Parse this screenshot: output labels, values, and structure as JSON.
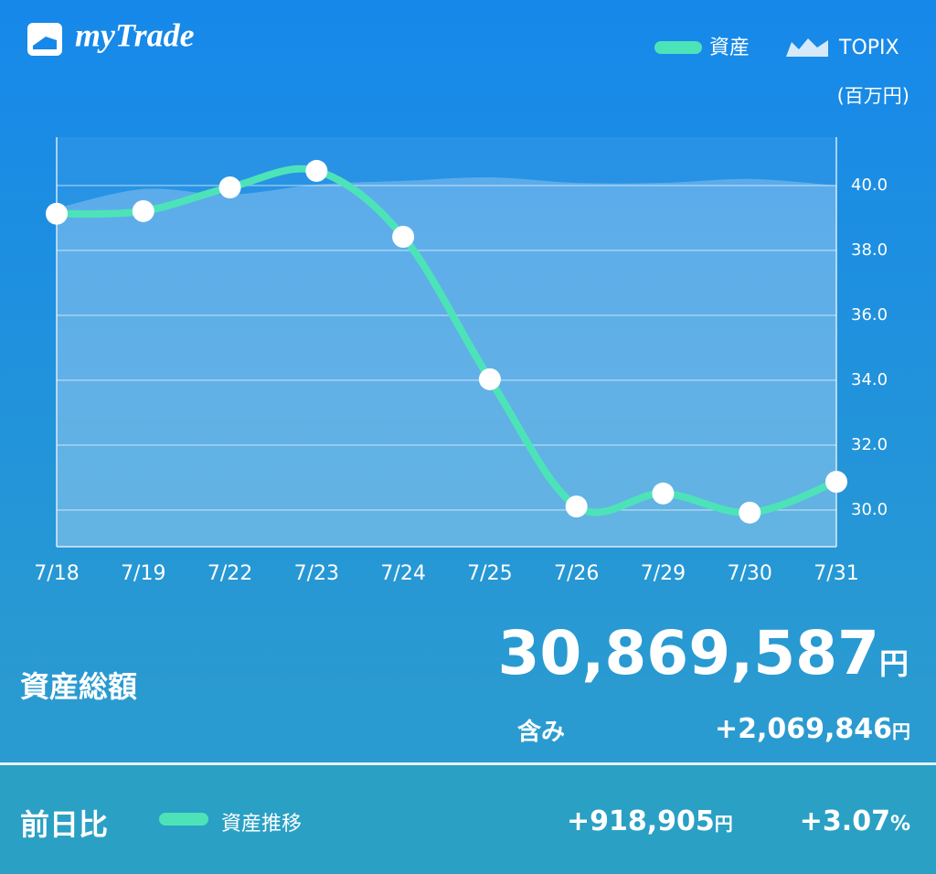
{
  "app_title": "myTrade",
  "chart_data": {
    "type": "line",
    "unit_label": "(百万円)",
    "categories": [
      "7/18",
      "7/19",
      "7/22",
      "7/23",
      "7/24",
      "7/25",
      "7/26",
      "7/29",
      "7/30",
      "7/31"
    ],
    "series": [
      {
        "name": "資産",
        "color": "#4de3b8",
        "kind": "line",
        "values": [
          39.13,
          39.21,
          39.94,
          40.45,
          38.42,
          34.03,
          30.11,
          30.51,
          29.92,
          30.87
        ]
      },
      {
        "name": "TOPIX",
        "color": "#d6e9fb",
        "kind": "area",
        "values": [
          39.3,
          39.89,
          39.72,
          40.03,
          40.14,
          40.25,
          40.08,
          40.08,
          40.2,
          40.0
        ]
      }
    ],
    "ylim": [
      28.87,
      41.49
    ],
    "yticks": [
      {
        "value": 30,
        "label": "30.0"
      },
      {
        "value": 32,
        "label": "32.0"
      },
      {
        "value": 34,
        "label": "34.0"
      },
      {
        "value": 36,
        "label": "36.0"
      },
      {
        "value": 38,
        "label": "38.0"
      },
      {
        "value": 40,
        "label": "40.0"
      }
    ],
    "grid": true
  },
  "summary": {
    "total_label": "資産総額",
    "total_value": "30,869,587",
    "total_unit": "円",
    "gain_label": "含み",
    "gain_value": "+2,069,846",
    "gain_unit": "円"
  },
  "footer": {
    "label": "前日比",
    "legend": "資産推移",
    "change_value": "+918,905",
    "change_unit": "円",
    "change_pct": "+3.07",
    "pct_unit": "%"
  }
}
